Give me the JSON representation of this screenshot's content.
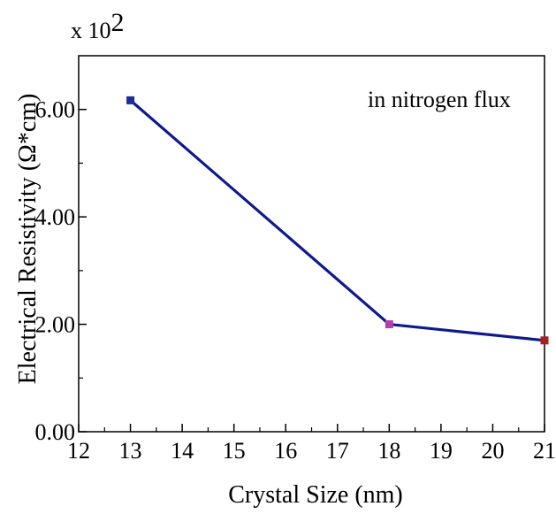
{
  "chart_data": {
    "type": "line",
    "title": "",
    "xlabel": "Crystal Size (nm)",
    "ylabel": "Electrical Resistivity (Ω*cm)",
    "y_scale_label": "x 10",
    "y_scale_exponent": "2",
    "annotation": "in nitrogen flux",
    "xlim": [
      12,
      21
    ],
    "ylim": [
      0,
      7
    ],
    "x_ticks": [
      "12",
      "13",
      "14",
      "15",
      "16",
      "17",
      "18",
      "19",
      "20",
      "21"
    ],
    "y_ticks": [
      "0.00",
      "2.00",
      "4.00",
      "6.00"
    ],
    "series": [
      {
        "x": [
          13,
          18,
          21
        ],
        "y": [
          6.17,
          2.0,
          1.7
        ],
        "line_color": "#0d1a8c",
        "marker_colors": [
          "#1a2d9a",
          "#b03fb0",
          "#a82020"
        ]
      }
    ],
    "grid": false
  }
}
